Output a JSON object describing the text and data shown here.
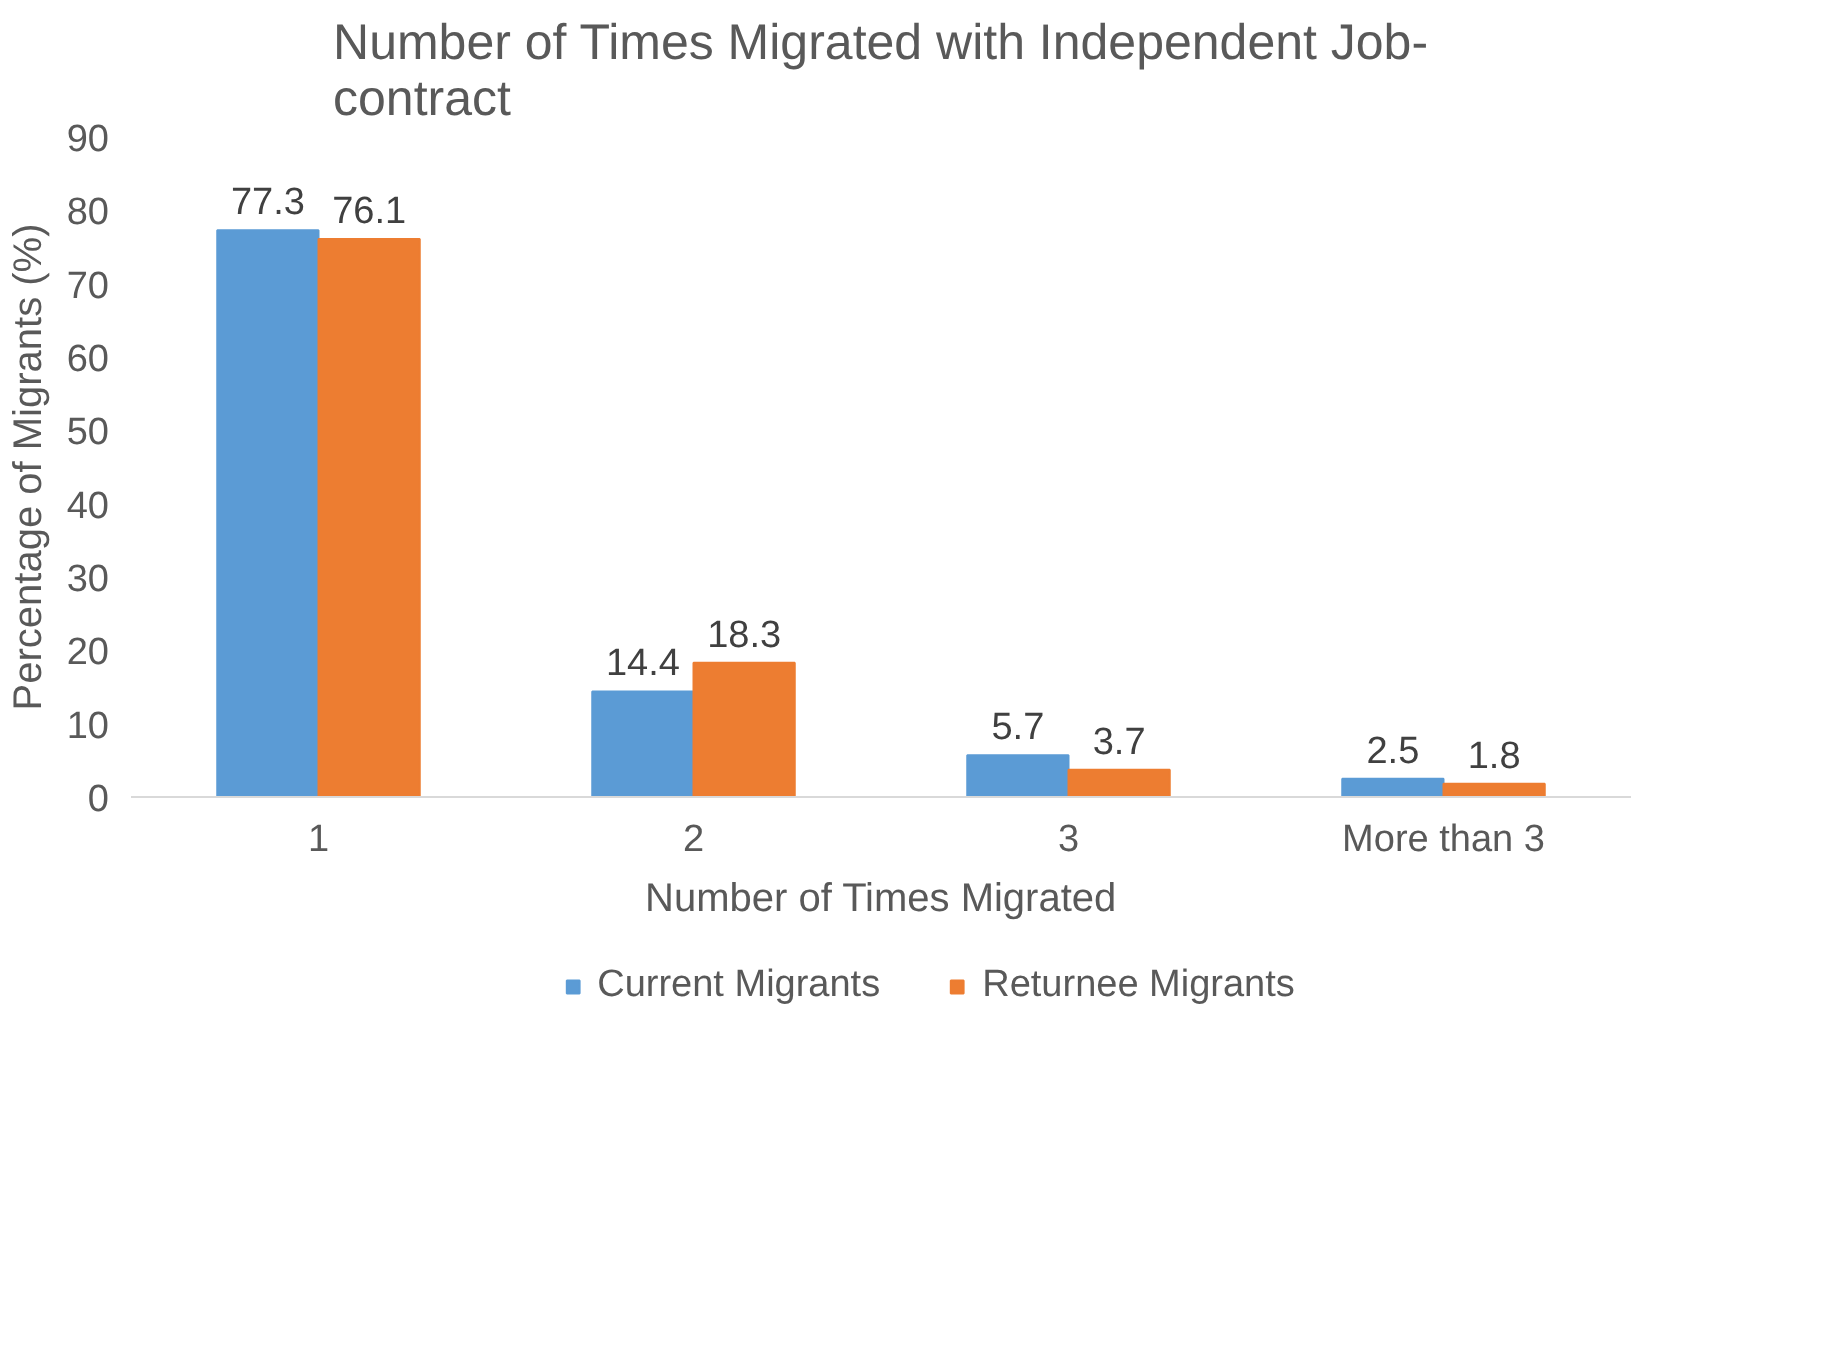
{
  "chart_data": {
    "type": "bar",
    "title": "Number of Times Migrated with Independent Job-contract",
    "xlabel": "Number of Times Migrated",
    "ylabel": "Percentage of Migrants (%)",
    "categories": [
      "1",
      "2",
      "3",
      "More than 3"
    ],
    "series": [
      {
        "name": "Current Migrants",
        "color": "#5b9bd5",
        "values": [
          77.3,
          14.4,
          5.7,
          2.5
        ]
      },
      {
        "name": "Returnee Migrants",
        "color": "#ed7d31",
        "values": [
          76.1,
          18.3,
          3.7,
          1.8
        ]
      }
    ],
    "ylim": [
      0,
      90
    ],
    "yticks": [
      0,
      10,
      20,
      30,
      40,
      50,
      60,
      70,
      80,
      90
    ],
    "grid": false,
    "legend": "bottom",
    "data_labels": true
  }
}
